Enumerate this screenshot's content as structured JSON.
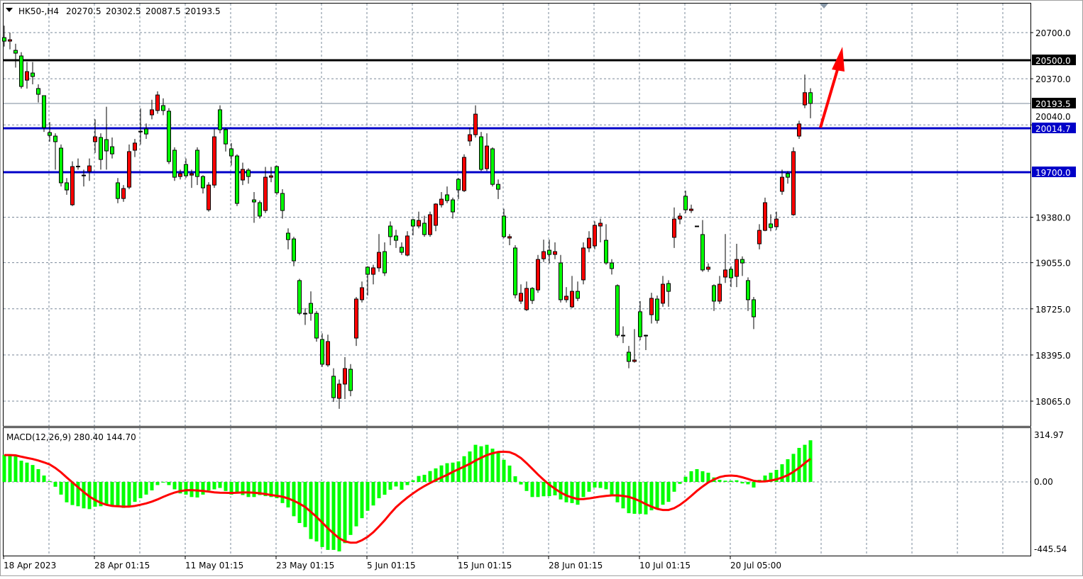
{
  "header": {
    "symbol": "HK50-,H4",
    "open": "20270.5",
    "high": "20302.5",
    "low": "20087.5",
    "close": "20193.5"
  },
  "price_axis": {
    "labels": [
      "20700.0",
      "20370.0",
      "20040.0",
      "19380.0",
      "19055.0",
      "18725.0",
      "18395.0",
      "18065.0"
    ],
    "values": [
      20700,
      20370,
      20040,
      19380,
      19055,
      18725,
      18395,
      18065
    ]
  },
  "levels": [
    {
      "label": "20500.0",
      "value": 20500,
      "color": "#000000",
      "kind": "horizontal-line"
    },
    {
      "label": "20193.5",
      "value": 20193.5,
      "color": "#000000",
      "kind": "bid-line"
    },
    {
      "label": "20014.7",
      "value": 20014.7,
      "color": "#0000c8",
      "kind": "horizontal-line"
    },
    {
      "label": "19700.0",
      "value": 19700,
      "color": "#0000c8",
      "kind": "horizontal-line"
    }
  ],
  "time_axis": [
    "18 Apr 2023",
    "28 Apr 01:15",
    "11 May 01:15",
    "23 May 01:15",
    "5 Jun 01:15",
    "15 Jun 01:15",
    "28 Jun 01:15",
    "10 Jul 01:15",
    "20 Jul 05:00"
  ],
  "macd": {
    "label": "MACD(12,26,9) 280.40 144.70",
    "axis_labels": [
      "314.97",
      "0.00",
      "-445.54"
    ],
    "max": 314.97,
    "min": -445.54,
    "hist_color": "#00ff00",
    "signal_color": "#ff0000"
  },
  "colors": {
    "bull": "#ff0000",
    "bear": "#00ff00",
    "arrow": "#ff0000"
  },
  "chart_data": {
    "type": "candlestick",
    "candles": [
      [
        20664,
        20750,
        20600,
        20639
      ],
      [
        20639,
        20700,
        20580,
        20649
      ],
      [
        20573,
        20620,
        20450,
        20553
      ],
      [
        20533,
        20560,
        20300,
        20315
      ],
      [
        20360,
        20490,
        20300,
        20421
      ],
      [
        20411,
        20490,
        20330,
        20386
      ],
      [
        20300,
        20330,
        20200,
        20259
      ],
      [
        20249,
        20249,
        19990,
        20021
      ],
      [
        19985,
        20060,
        19920,
        19965
      ],
      [
        19960,
        19980,
        19720,
        19920
      ],
      [
        19874,
        19900,
        19600,
        19626
      ],
      [
        19626,
        19660,
        19540,
        19575
      ],
      [
        19469,
        19780,
        19460,
        19742
      ],
      [
        19742,
        19800,
        19720,
        19745
      ],
      [
        19681,
        19720,
        19600,
        19680
      ],
      [
        19707,
        19800,
        19640,
        19747
      ],
      [
        19920,
        20080,
        19840,
        19955
      ],
      [
        19950,
        19980,
        19720,
        19793
      ],
      [
        19935,
        20170,
        19720,
        19854
      ],
      [
        19884,
        19950,
        19800,
        19833
      ],
      [
        19626,
        19660,
        19480,
        19514
      ],
      [
        19514,
        19610,
        19490,
        19585
      ],
      [
        19595,
        19900,
        19580,
        19849
      ],
      [
        19859,
        19940,
        19810,
        19910
      ],
      [
        19990,
        20158,
        19900,
        19995
      ],
      [
        20011,
        20050,
        19940,
        19975
      ],
      [
        20112,
        20220,
        20080,
        20148
      ],
      [
        20143,
        20280,
        20120,
        20254
      ],
      [
        20178,
        20230,
        20110,
        20143
      ],
      [
        20138,
        20160,
        19760,
        19778
      ],
      [
        19859,
        19880,
        19640,
        19666
      ],
      [
        19671,
        19720,
        19650,
        19691
      ],
      [
        19757,
        19800,
        19660,
        19676
      ],
      [
        19681,
        19720,
        19590,
        19691
      ],
      [
        19859,
        19880,
        19610,
        19671
      ],
      [
        19671,
        19680,
        19550,
        19590
      ],
      [
        19433,
        19630,
        19420,
        19610
      ],
      [
        19610,
        20010,
        19590,
        19955
      ],
      [
        20148,
        20180,
        19980,
        20006
      ],
      [
        20006,
        20020,
        19850,
        19904
      ],
      [
        19869,
        19910,
        19750,
        19818
      ],
      [
        19818,
        19830,
        19460,
        19479
      ],
      [
        19646,
        19770,
        19610,
        19722
      ],
      [
        19717,
        19730,
        19620,
        19671
      ],
      [
        19504,
        19560,
        19340,
        19489
      ],
      [
        19484,
        19500,
        19370,
        19388
      ],
      [
        19428,
        19740,
        19410,
        19666
      ],
      [
        19666,
        19740,
        19630,
        19676
      ],
      [
        19742,
        19750,
        19540,
        19555
      ],
      [
        19550,
        19580,
        19370,
        19428
      ],
      [
        19266,
        19300,
        19150,
        19220
      ],
      [
        19225,
        19240,
        19030,
        19068
      ],
      [
        18927,
        18940,
        18680,
        18693
      ],
      [
        18693,
        18730,
        18610,
        18690
      ],
      [
        18764,
        18850,
        18640,
        18693
      ],
      [
        18693,
        18710,
        18490,
        18516
      ],
      [
        18506,
        18550,
        18310,
        18329
      ],
      [
        18324,
        18540,
        18310,
        18491
      ],
      [
        18243,
        18300,
        18060,
        18090
      ],
      [
        18085,
        18220,
        18010,
        18187
      ],
      [
        18187,
        18380,
        18080,
        18298
      ],
      [
        18293,
        18330,
        18100,
        18141
      ],
      [
        18516,
        18810,
        18460,
        18795
      ],
      [
        18790,
        18920,
        18770,
        18876
      ],
      [
        19023,
        19030,
        18820,
        18972
      ],
      [
        18972,
        19040,
        18900,
        19018
      ],
      [
        19018,
        19260,
        18990,
        19129
      ],
      [
        19134,
        19200,
        18960,
        18982
      ],
      [
        19317,
        19350,
        19180,
        19241
      ],
      [
        19246,
        19290,
        19160,
        19215
      ],
      [
        19165,
        19200,
        19110,
        19129
      ],
      [
        19109,
        19280,
        19100,
        19246
      ],
      [
        19362,
        19370,
        19250,
        19317
      ],
      [
        19317,
        19420,
        19300,
        19357
      ],
      [
        19337,
        19390,
        19240,
        19256
      ],
      [
        19256,
        19420,
        19240,
        19398
      ],
      [
        19322,
        19480,
        19280,
        19474
      ],
      [
        19469,
        19560,
        19450,
        19509
      ],
      [
        19540,
        19600,
        19480,
        19499
      ],
      [
        19504,
        19520,
        19370,
        19418
      ],
      [
        19651,
        19660,
        19510,
        19575
      ],
      [
        19570,
        19830,
        19560,
        19808
      ],
      [
        19925,
        20020,
        19890,
        19970
      ],
      [
        19970,
        20180,
        19950,
        20117
      ],
      [
        19955,
        19990,
        19710,
        19722
      ],
      [
        19727,
        19980,
        19710,
        19889
      ],
      [
        19869,
        19880,
        19600,
        19615
      ],
      [
        19615,
        19650,
        19510,
        19580
      ],
      [
        19388,
        19440,
        19230,
        19241
      ],
      [
        19231,
        19260,
        19180,
        19241
      ],
      [
        19160,
        19180,
        18800,
        18825
      ],
      [
        18780,
        18900,
        18760,
        18836
      ],
      [
        18719,
        18920,
        18710,
        18871
      ],
      [
        18871,
        18880,
        18760,
        18785
      ],
      [
        18860,
        19110,
        18840,
        19078
      ],
      [
        19083,
        19220,
        19060,
        19134
      ],
      [
        19144,
        19220,
        19050,
        19114
      ],
      [
        19114,
        19200,
        19080,
        19134
      ],
      [
        19053,
        19110,
        18770,
        18790
      ],
      [
        18790,
        18880,
        18770,
        18815
      ],
      [
        18739,
        18960,
        18730,
        18850
      ],
      [
        18850,
        18920,
        18780,
        18800
      ],
      [
        18932,
        19200,
        18900,
        19160
      ],
      [
        19160,
        19280,
        19130,
        19230
      ],
      [
        19175,
        19350,
        19150,
        19322
      ],
      [
        19317,
        19370,
        19200,
        19337
      ],
      [
        19215,
        19330,
        19040,
        19053
      ],
      [
        19053,
        19080,
        18970,
        19013
      ],
      [
        18891,
        18900,
        18520,
        18536
      ],
      [
        18536,
        18600,
        18480,
        18536
      ],
      [
        18415,
        18460,
        18300,
        18349
      ],
      [
        18349,
        18580,
        18340,
        18359
      ],
      [
        18704,
        18780,
        18500,
        18526
      ],
      [
        18536,
        18540,
        18430,
        18536
      ],
      [
        18683,
        18840,
        18620,
        18800
      ],
      [
        18795,
        18820,
        18620,
        18643
      ],
      [
        18765,
        18960,
        18740,
        18901
      ],
      [
        18906,
        18930,
        18740,
        18850
      ],
      [
        19236,
        19450,
        19160,
        19367
      ],
      [
        19367,
        19410,
        19330,
        19388
      ],
      [
        19530,
        19570,
        19410,
        19433
      ],
      [
        19428,
        19470,
        19410,
        19438
      ],
      [
        19317,
        19317,
        19317,
        19317
      ],
      [
        19256,
        19360,
        18990,
        19003
      ],
      [
        19008,
        19050,
        18990,
        19023
      ],
      [
        18891,
        18900,
        18710,
        18780
      ],
      [
        18780,
        18960,
        18760,
        18901
      ],
      [
        18952,
        19260,
        18910,
        19003
      ],
      [
        19008,
        19030,
        18880,
        18947
      ],
      [
        18957,
        19190,
        18880,
        19078
      ],
      [
        19078,
        19100,
        18960,
        19053
      ],
      [
        18927,
        18950,
        18710,
        18790
      ],
      [
        18790,
        18810,
        18580,
        18668
      ],
      [
        19190,
        19330,
        19150,
        19286
      ],
      [
        19286,
        19520,
        19280,
        19484
      ],
      [
        19332,
        19400,
        19280,
        19306
      ],
      [
        19312,
        19420,
        19290,
        19367
      ],
      [
        19565,
        19720,
        19540,
        19666
      ],
      [
        19692,
        19710,
        19620,
        19666
      ],
      [
        19398,
        19880,
        19390,
        19849
      ],
      [
        19960,
        20070,
        19940,
        20047
      ],
      [
        20183,
        20400,
        20160,
        20270.5
      ],
      [
        20270.5,
        20302.5,
        20087.5,
        20193.5
      ]
    ],
    "macd_histogram": [
      181,
      181,
      175,
      143,
      130,
      114,
      86,
      43,
      6,
      -32,
      -84,
      -135,
      -153,
      -161,
      -175,
      -180,
      -164,
      -161,
      -151,
      -153,
      -156,
      -172,
      -161,
      -132,
      -108,
      -84,
      -56,
      -21,
      0,
      -21,
      -49,
      -76,
      -84,
      -100,
      -103,
      -84,
      -56,
      -49,
      -40,
      -60,
      -84,
      -68,
      -87,
      -100,
      -100,
      -87,
      -94,
      -100,
      -108,
      -140,
      -169,
      -227,
      -272,
      -299,
      -378,
      -394,
      -431,
      -450,
      -450,
      -460,
      -405,
      -351,
      -294,
      -240,
      -191,
      -156,
      -108,
      -85,
      -52,
      -30,
      -52,
      -21,
      11,
      40,
      48,
      73,
      91,
      111,
      126,
      130,
      138,
      173,
      205,
      250,
      240,
      250,
      224,
      202,
      149,
      110,
      38,
      -17,
      -60,
      -100,
      -100,
      -95,
      -94,
      -89,
      -116,
      -135,
      -140,
      -151,
      -100,
      -65,
      -37,
      -40,
      -49,
      -84,
      -135,
      -175,
      -207,
      -211,
      -211,
      -215,
      -188,
      -180,
      -151,
      -132,
      -65,
      -13,
      35,
      72,
      86,
      72,
      62,
      30,
      14,
      8,
      8,
      11,
      -10,
      -16,
      -37,
      14,
      43,
      62,
      81,
      119,
      153,
      189,
      229,
      250,
      280.4
    ],
    "ylim": [
      18065,
      20700
    ]
  }
}
